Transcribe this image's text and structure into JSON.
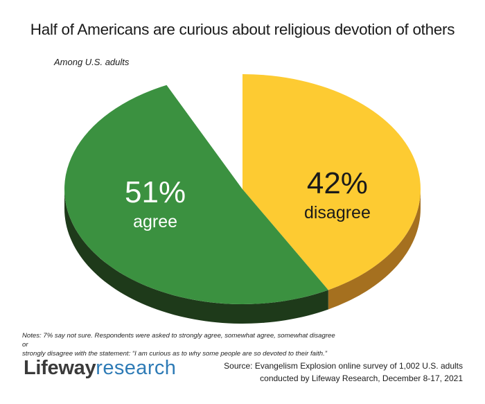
{
  "chart_data": {
    "type": "pie",
    "title": "Half of Americans are curious about religious devotion of others",
    "subtitle": "Among U.S. adults",
    "slices": [
      {
        "label": "disagree",
        "value": 42,
        "display_value": "42%",
        "color": "#fdcb32",
        "side_color": "#a5701f",
        "text_color": "#1a1a1a"
      },
      {
        "label": "agree",
        "value": 51,
        "display_value": "51%",
        "color": "#3b9140",
        "side_color": "#1e3a1a",
        "text_color": "#ffffff"
      },
      {
        "label": "not sure",
        "value": 7,
        "display_value": "",
        "color": "#ffffff",
        "side_color": "#ffffff",
        "text_color": "#1a1a1a"
      }
    ]
  },
  "notes": {
    "line1": "Notes: 7% say not sure. Respondents were asked to strongly agree, somewhat agree, somewhat disagree or",
    "line2": "strongly disagree with the statement: “I am curious as to why some people are so devoted to their faith.”"
  },
  "logo": {
    "brand": "Lifeway",
    "sub": "research"
  },
  "source": {
    "line1": "Source: Evangelism Explosion online survey of 1,002 U.S. adults",
    "line2": "conducted by Lifeway Research, December 8-17, 2021"
  }
}
